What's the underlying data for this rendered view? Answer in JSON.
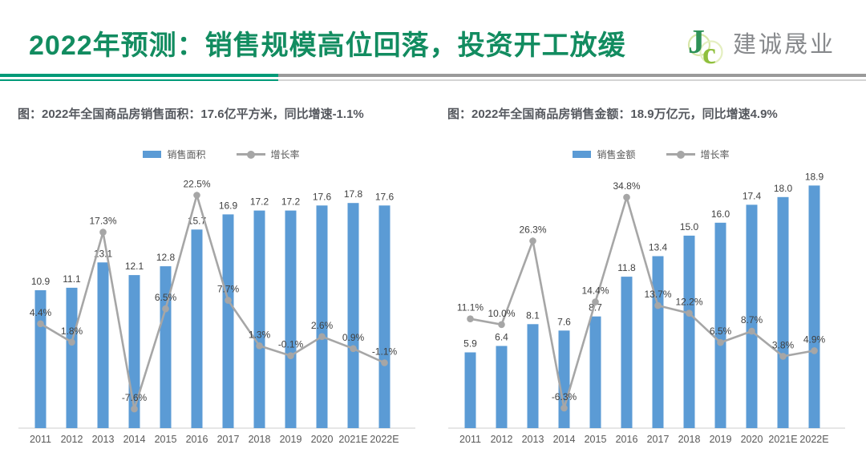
{
  "header": {
    "title": "2022年预测：销售规模高位回落，投资开工放缓",
    "logo_text": "建诚晟业",
    "logo_monogram": {
      "j": "J",
      "c": "c"
    },
    "title_color": "#128c60",
    "accent_green": "#009a78",
    "accent_gray": "#9a9a9a"
  },
  "chart_data": [
    {
      "type": "bar+line",
      "subtitle": "图：2022年全国商品房销售面积：17.6亿平方米，同比增速-1.1%",
      "categories": [
        "2011",
        "2012",
        "2013",
        "2014",
        "2015",
        "2016",
        "2017",
        "2018",
        "2019",
        "2020",
        "2021E",
        "2022E"
      ],
      "bar_series": {
        "name": "销售面积",
        "unit": "亿平方米",
        "color": "#5B9BD5",
        "values": [
          10.9,
          11.1,
          13.1,
          12.1,
          12.8,
          15.7,
          16.9,
          17.2,
          17.2,
          17.6,
          17.8,
          17.6
        ]
      },
      "line_series": {
        "name": "增长率",
        "unit": "%",
        "color": "#A6A6A6",
        "values_pct": [
          4.4,
          1.8,
          17.3,
          -7.6,
          6.5,
          22.5,
          7.7,
          1.3,
          -0.1,
          2.6,
          0.9,
          -1.1
        ]
      },
      "bar_ylim": [
        0,
        20.6
      ],
      "line_ylim": [
        -10.3,
        26.4
      ],
      "legend_position": "top",
      "grid": false,
      "axes_hidden": true
    },
    {
      "type": "bar+line",
      "subtitle": "图：2022年全国商品房销售金额：18.9万亿元，同比增速4.9%",
      "categories": [
        "2011",
        "2012",
        "2013",
        "2014",
        "2015",
        "2016",
        "2017",
        "2018",
        "2019",
        "2020",
        "2021E",
        "2022E"
      ],
      "bar_series": {
        "name": "销售金额",
        "unit": "万亿元",
        "color": "#5B9BD5",
        "values": [
          5.9,
          6.4,
          8.1,
          7.6,
          8.7,
          11.8,
          13.4,
          15.0,
          16.0,
          17.4,
          18.0,
          18.9
        ]
      },
      "line_series": {
        "name": "增长率",
        "unit": "%",
        "color": "#A6A6A6",
        "values_pct": [
          11.1,
          10.0,
          26.3,
          -6.3,
          14.4,
          34.8,
          13.7,
          12.2,
          6.5,
          8.7,
          3.8,
          4.9
        ]
      },
      "bar_ylim": [
        0,
        20.3
      ],
      "line_ylim": [
        -10.2,
        40.6
      ],
      "legend_position": "top",
      "grid": false,
      "axes_hidden": true
    }
  ]
}
